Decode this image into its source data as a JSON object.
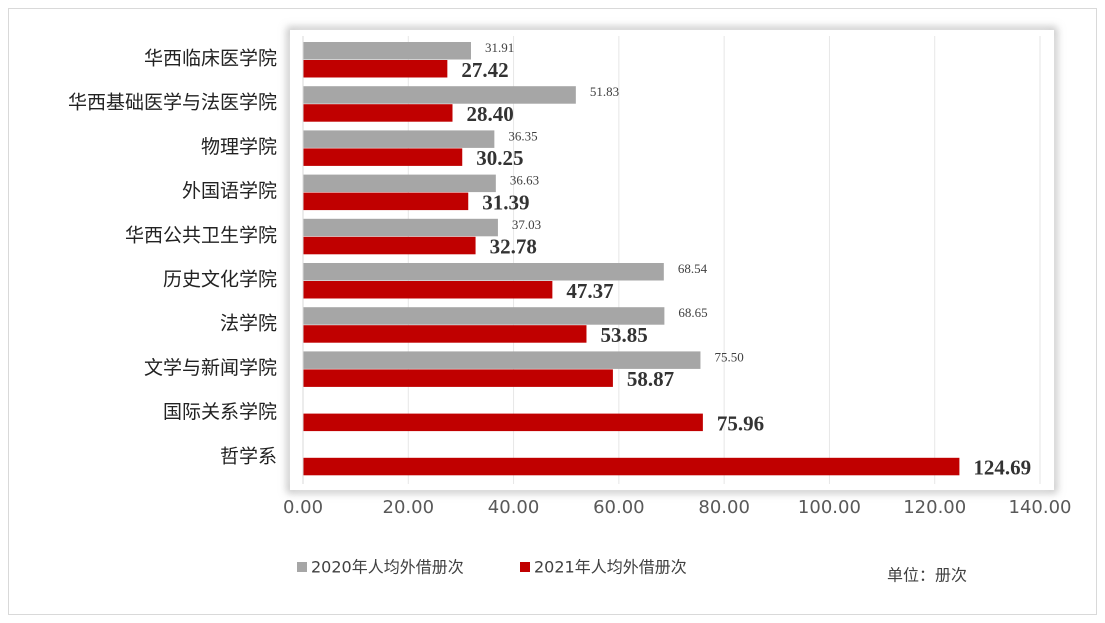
{
  "chart_data": {
    "type": "bar",
    "orientation": "horizontal",
    "categories": [
      "华西临床医学院",
      "华西基础医学与法医学院",
      "物理学院",
      "外国语学院",
      "华西公共卫生学院",
      "历史文化学院",
      "法学院",
      "文学与新闻学院",
      "国际关系学院",
      "哲学系"
    ],
    "series": [
      {
        "name": "2020年人均外借册次",
        "color": "#a6a6a6",
        "values": [
          31.91,
          51.83,
          36.35,
          36.63,
          37.03,
          68.54,
          68.65,
          75.5,
          null,
          null
        ],
        "value_labels": [
          "31.91",
          "51.83",
          "36.35",
          "36.63",
          "37.03",
          "68.54",
          "68.65",
          "75.50",
          null,
          null
        ]
      },
      {
        "name": "2021年人均外借册次",
        "color": "#c00000",
        "values": [
          27.42,
          28.4,
          30.25,
          31.39,
          32.78,
          47.37,
          53.85,
          58.87,
          75.96,
          124.69
        ],
        "value_labels": [
          "27.42",
          "28.40",
          "30.25",
          "31.39",
          "32.78",
          "47.37",
          "53.85",
          "58.87",
          "75.96",
          "124.69"
        ]
      }
    ],
    "xlim": [
      0,
      140
    ],
    "xticks": [
      {
        "value": 0,
        "label": "0.00"
      },
      {
        "value": 20,
        "label": "20.00"
      },
      {
        "value": 40,
        "label": "40.00"
      },
      {
        "value": 60,
        "label": "60.00"
      },
      {
        "value": 80,
        "label": "80.00"
      },
      {
        "value": 100,
        "label": "100.00"
      },
      {
        "value": 120,
        "label": "120.00"
      },
      {
        "value": 140,
        "label": "140.00"
      }
    ],
    "grid": true,
    "legend": "bottom",
    "unit_note": "单位：册次"
  }
}
